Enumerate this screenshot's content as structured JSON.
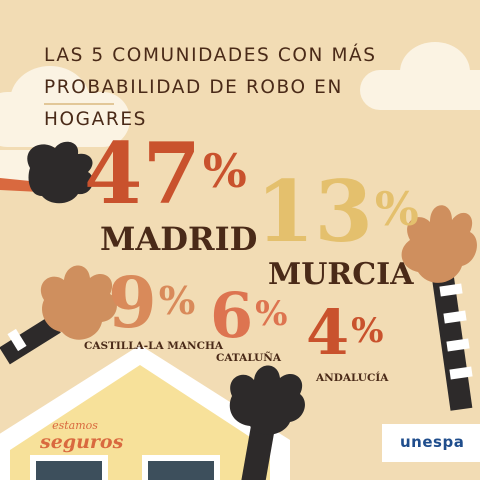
{
  "title": {
    "line1": "LAS 5 COMUNIDADES CON MÁS",
    "line2": "PROBABILIDAD DE ROBO EN HOGARES"
  },
  "regions": [
    {
      "name": "MADRID",
      "value": "47",
      "percent": 47,
      "color": "#c9522d"
    },
    {
      "name": "MURCIA",
      "value": "13",
      "percent": 13,
      "color": "#e4c06d"
    },
    {
      "name": "CASTILLA-LA MANCHA",
      "value": "9",
      "percent": 9,
      "color": "#d98a5a"
    },
    {
      "name": "CATALUÑA",
      "value": "6",
      "percent": 6,
      "color": "#dd7450"
    },
    {
      "name": "ANDALUCÍA",
      "value": "4",
      "percent": 4,
      "color": "#c9522d"
    }
  ],
  "percent_sign": "%",
  "brand": {
    "line1": "estamos",
    "line2": "seguros"
  },
  "logo": {
    "text": "unespa"
  },
  "colors": {
    "background": "#f2dcb4",
    "title": "#4a2a18",
    "names": "#4a2a18",
    "cloud": "#fbf3e3",
    "house_wall": "#f7e19a",
    "house_roof": "#ffffff",
    "hand_dark": "#2d2a2a",
    "hand_skin": "#cf8f5e"
  }
}
